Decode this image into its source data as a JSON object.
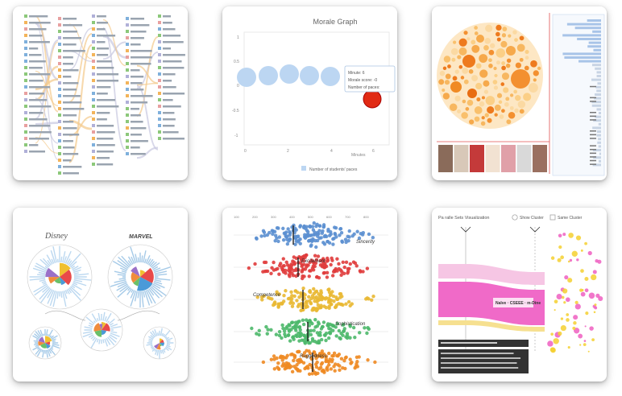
{
  "gallery": {
    "cards": [
      {
        "id": "flow-lists"
      },
      {
        "id": "morale-graph",
        "chart_title": "Morale Graph",
        "y_ticks": [
          "1",
          "0.5",
          "0",
          "-0.5",
          "-1"
        ],
        "x_ticks": [
          "0",
          "2",
          "4",
          "6"
        ],
        "x_label": "Minutes",
        "legend": "Number of students' paces",
        "tooltip_line1": "Minute: 6",
        "tooltip_line2": "Morale score: -0",
        "tooltip_line3": "Number of paces:"
      },
      {
        "id": "circle-pack-images"
      },
      {
        "id": "disney-radial",
        "left_logo": "Disney",
        "right_logo": "MARVEL"
      },
      {
        "id": "beeswarm-traits",
        "axis_ticks": [
          "100",
          "200",
          "300",
          "400",
          "500",
          "600",
          "700",
          "800"
        ],
        "rows": [
          "Sincerity",
          "Excitement",
          "Competence",
          "Sophistication",
          "Ruggedness"
        ]
      },
      {
        "id": "parallel-sets",
        "header": "Pa ralle Sets Visualization",
        "toggle1": "Show Cluster",
        "toggle2": "Same Cluster",
        "band_label": "Naïve  ·  CSEEE  ·  m-Dine"
      }
    ]
  }
}
